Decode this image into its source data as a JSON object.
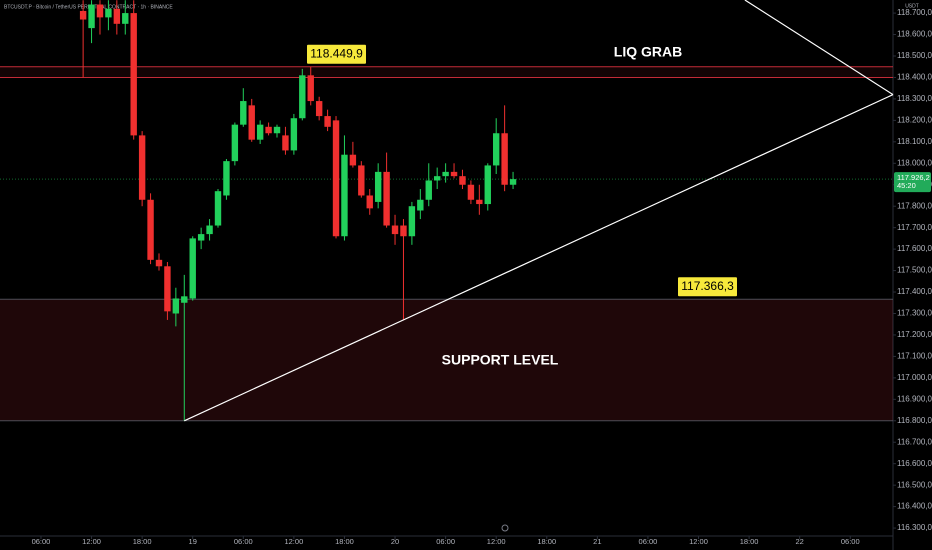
{
  "chart_data": {
    "type": "candlestick",
    "title": "BTCUSDT.P · Bitcoin / TetherUS PERPETUAL CONTRACT · 1h · BINANCE",
    "currency": "USDT",
    "up_color": "#22d15c",
    "down_color": "#f0302f",
    "x": [
      5,
      6,
      7,
      8,
      9,
      10,
      11,
      12,
      13,
      14,
      15,
      16,
      17,
      18,
      19,
      20,
      21,
      22,
      23,
      24,
      25,
      26,
      27,
      28,
      29,
      30,
      31,
      32,
      33,
      34,
      35,
      36,
      37,
      38,
      39,
      40,
      41,
      42,
      43,
      44,
      45,
      46,
      47,
      48,
      49,
      50,
      51,
      52,
      53,
      54,
      55,
      56
    ],
    "open": [
      118710,
      118630,
      118740,
      118680,
      118720,
      118650,
      118700,
      118130,
      117830,
      117550,
      117520,
      117300,
      117350,
      117370,
      117640,
      117670,
      117710,
      117850,
      118010,
      118180,
      118270,
      118110,
      118170,
      118140,
      118130,
      118060,
      118210,
      118410,
      118290,
      118220,
      118200,
      117660,
      118040,
      117990,
      117850,
      117820,
      117960,
      117710,
      117710,
      117660,
      117780,
      117830,
      117920,
      117940,
      117960,
      117940,
      117900,
      117830,
      117810,
      117990,
      118140,
      117900
    ],
    "high": [
      118760,
      118760,
      118760,
      118760,
      118760,
      118760,
      118760,
      118150,
      117860,
      117580,
      117540,
      117420,
      117480,
      117660,
      117700,
      117740,
      117880,
      118020,
      118190,
      118350,
      118300,
      118200,
      118190,
      118180,
      118170,
      118230,
      118440,
      118450,
      118310,
      118250,
      118220,
      118130,
      118100,
      118010,
      117880,
      118000,
      118050,
      117760,
      117740,
      117820,
      117880,
      118000,
      117980,
      118000,
      118000,
      117970,
      117920,
      117900,
      118000,
      118210,
      118270,
      117960
    ],
    "low": [
      118400,
      118560,
      118600,
      118620,
      118600,
      118600,
      118110,
      117800,
      117530,
      117500,
      117270,
      117240,
      116800,
      117360,
      117600,
      117640,
      117700,
      117830,
      117990,
      118170,
      118100,
      118090,
      118130,
      118120,
      118040,
      118040,
      118200,
      118270,
      118200,
      118150,
      117650,
      117640,
      117980,
      117840,
      117760,
      117790,
      117700,
      117620,
      117270,
      117620,
      117740,
      117800,
      117880,
      117910,
      117930,
      117880,
      117810,
      117760,
      117780,
      117950,
      117870,
      117880
    ],
    "close": [
      118670,
      118740,
      118680,
      118720,
      118650,
      118700,
      118130,
      117830,
      117550,
      117520,
      117310,
      117370,
      117380,
      117650,
      117670,
      117710,
      117870,
      118010,
      118180,
      118290,
      118110,
      118180,
      118140,
      118170,
      118060,
      118210,
      118410,
      118290,
      118220,
      118170,
      117660,
      118040,
      117990,
      117850,
      117790,
      117960,
      117710,
      117670,
      117660,
      117800,
      117830,
      117920,
      117940,
      117960,
      117940,
      117900,
      117830,
      117810,
      117990,
      118140,
      117900,
      117926.2
    ],
    "xlim": [
      -4.86,
      101.07
    ],
    "xticks": [
      {
        "value": 0,
        "label": "06:00"
      },
      {
        "value": 6,
        "label": "12:00"
      },
      {
        "value": 12,
        "label": "18:00"
      },
      {
        "value": 18,
        "label": "19"
      },
      {
        "value": 24,
        "label": "06:00"
      },
      {
        "value": 30,
        "label": "12:00"
      },
      {
        "value": 36,
        "label": "18:00"
      },
      {
        "value": 42,
        "label": "20"
      },
      {
        "value": 48,
        "label": "06:00"
      },
      {
        "value": 54,
        "label": "12:00"
      },
      {
        "value": 60,
        "label": "18:00"
      },
      {
        "value": 66,
        "label": "21"
      },
      {
        "value": 72,
        "label": "06:00"
      },
      {
        "value": 78,
        "label": "12:00"
      },
      {
        "value": 84,
        "label": "18:00"
      },
      {
        "value": 90,
        "label": "22"
      },
      {
        "value": 96,
        "label": "06:00"
      }
    ],
    "ylim": [
      116263,
      118761
    ],
    "yticks": [
      {
        "value": 116300,
        "label": "116.300,0"
      },
      {
        "value": 116400,
        "label": "116.400,0"
      },
      {
        "value": 116500,
        "label": "116.500,0"
      },
      {
        "value": 116600,
        "label": "116.600,0"
      },
      {
        "value": 116700,
        "label": "116.700,0"
      },
      {
        "value": 116800,
        "label": "116.800,0"
      },
      {
        "value": 116900,
        "label": "116.900,0"
      },
      {
        "value": 117000,
        "label": "117.000,0"
      },
      {
        "value": 117100,
        "label": "117.100,0"
      },
      {
        "value": 117200,
        "label": "117.200,0"
      },
      {
        "value": 117300,
        "label": "117.300,0"
      },
      {
        "value": 117400,
        "label": "117.400,0"
      },
      {
        "value": 117500,
        "label": "117.500,0"
      },
      {
        "value": 117600,
        "label": "117.600,0"
      },
      {
        "value": 117700,
        "label": "117.700,0"
      },
      {
        "value": 117800,
        "label": "117.800,0"
      },
      {
        "value": 117900,
        "label": "117.900,0"
      },
      {
        "value": 118000,
        "label": "118.000,0"
      },
      {
        "value": 118100,
        "label": "118.100,0"
      },
      {
        "value": 118200,
        "label": "118.200,0"
      },
      {
        "value": 118300,
        "label": "118.300,0"
      },
      {
        "value": 118400,
        "label": "118.400,0"
      },
      {
        "value": 118500,
        "label": "118.500,0"
      },
      {
        "value": 118600,
        "label": "118.600,0"
      },
      {
        "value": 118700,
        "label": "118.700,0"
      }
    ],
    "zones": [
      {
        "name": "LIQ GRAB",
        "top": 118449.9,
        "bottom": 118400,
        "color": "#f23645"
      },
      {
        "name": "SUPPORT LEVEL",
        "top": 117366.3,
        "bottom": 116800,
        "color": "#f23645"
      }
    ],
    "price_labels": [
      {
        "value": 118449.9,
        "label": "118.449,9"
      },
      {
        "value": 117366.3,
        "label": "117.366,3"
      }
    ],
    "trendlines": [
      {
        "x": [
          17,
          101.07
        ],
        "y": [
          116800,
          118320
        ]
      },
      {
        "x": [
          83.5,
          101.07
        ],
        "y": [
          118761,
          118320
        ]
      }
    ],
    "last_price": {
      "value": 117926.2,
      "label": "117.926,2",
      "countdown": "45:20"
    }
  }
}
